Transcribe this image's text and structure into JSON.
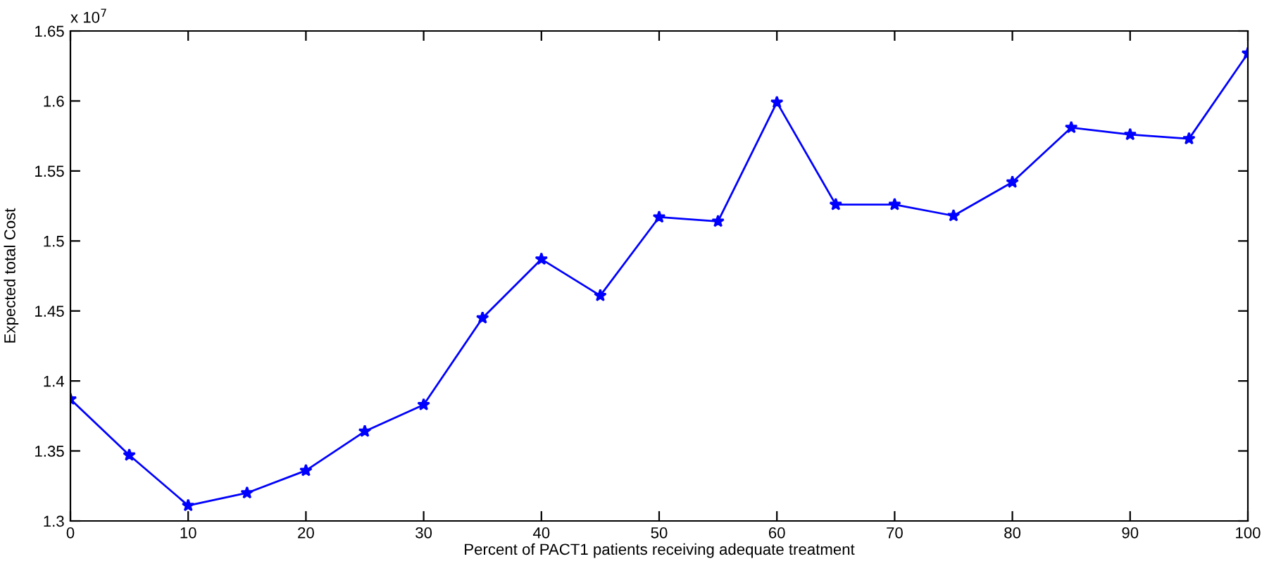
{
  "chart_data": {
    "type": "line",
    "xlabel": "Percent of PACT1 patients receiving adequate treatment",
    "ylabel": "Expected total Cost",
    "annotations": [
      "x 10$^{7}$"
    ],
    "x": [
      0,
      5,
      10,
      15,
      20,
      25,
      30,
      35,
      40,
      45,
      50,
      55,
      60,
      65,
      70,
      75,
      80,
      85,
      90,
      95,
      100
    ],
    "series": [
      {
        "color": "#0000ff",
        "values": [
          1.387,
          1.347,
          1.311,
          1.32,
          1.336,
          1.364,
          1.383,
          1.445,
          1.487,
          1.461,
          1.517,
          1.514,
          1.599,
          1.526,
          1.526,
          1.518,
          1.542,
          1.581,
          1.576,
          1.573,
          1.634
        ]
      }
    ],
    "xlim": [
      0,
      100
    ],
    "xticks": [
      0,
      10,
      20,
      30,
      40,
      50,
      60,
      70,
      80,
      90,
      100
    ],
    "ylim": [
      1.3,
      1.65
    ],
    "yticks": [
      1.3,
      1.35,
      1.4,
      1.45,
      1.5,
      1.55,
      1.6,
      1.65
    ],
    "marker": "star",
    "line_style": "solid",
    "grid": false
  }
}
